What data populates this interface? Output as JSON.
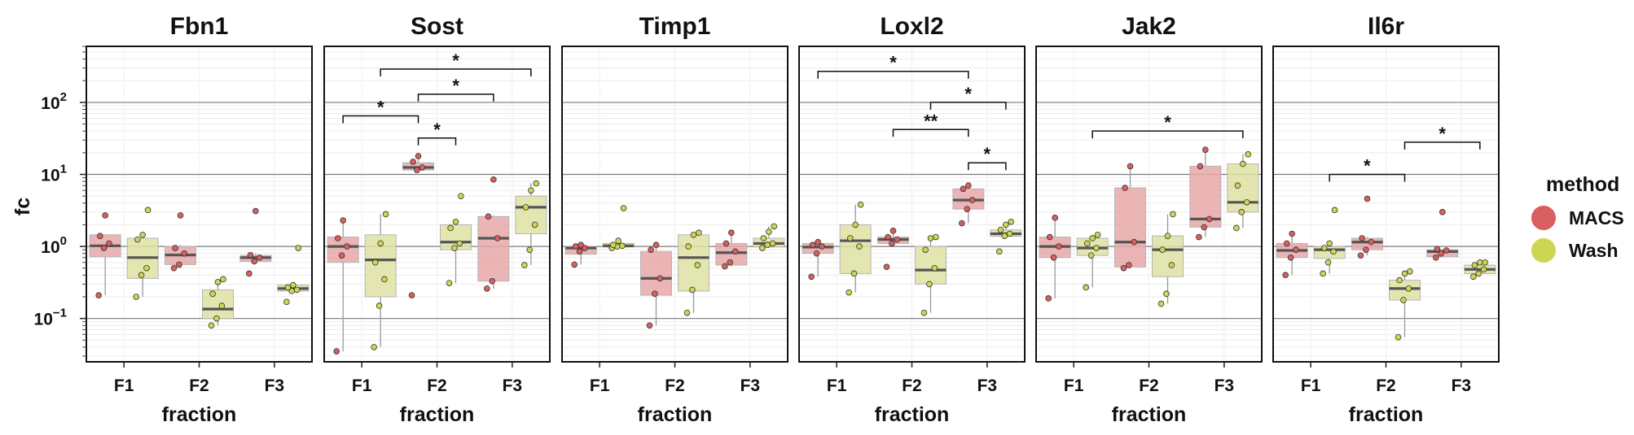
{
  "chart_data": {
    "type": "box",
    "y_scale": "log10",
    "ylim": [
      0.025,
      600
    ],
    "ylabel": "fc",
    "xlabel": "fraction",
    "categories": [
      "F1",
      "F2",
      "F3"
    ],
    "y_ticks": [
      {
        "value": 0.1,
        "base": "10",
        "exp": "−1"
      },
      {
        "value": 1,
        "base": "10",
        "exp": "0"
      },
      {
        "value": 10,
        "base": "10",
        "exp": "1"
      },
      {
        "value": 100,
        "base": "10",
        "exp": "2"
      }
    ],
    "legend": {
      "title": "method",
      "position": "right",
      "items": [
        {
          "key": "MACS",
          "label": "MACS",
          "color": "#d95f5f",
          "fill": "#e8a8a8"
        },
        {
          "key": "Wash",
          "label": "Wash",
          "color": "#cdd653",
          "fill": "#dfe2a3"
        }
      ]
    },
    "panels": [
      {
        "title": "Fbn1",
        "boxes": [
          {
            "fraction": "F1",
            "method": "MACS",
            "q1": 0.72,
            "median": 1.02,
            "q3": 1.45,
            "lo": 0.21,
            "hi": 1.48,
            "points": [
              0.21,
              0.95,
              1.1,
              1.4,
              2.7
            ]
          },
          {
            "fraction": "F1",
            "method": "Wash",
            "q1": 0.36,
            "median": 0.7,
            "q3": 1.3,
            "lo": 0.2,
            "hi": 1.5,
            "points": [
              0.2,
              0.4,
              0.5,
              1.25,
              1.45,
              3.2
            ]
          },
          {
            "fraction": "F2",
            "method": "MACS",
            "q1": 0.56,
            "median": 0.76,
            "q3": 1.0,
            "lo": 0.5,
            "hi": 1.05,
            "points": [
              0.5,
              0.56,
              0.8,
              0.95,
              2.7
            ]
          },
          {
            "fraction": "F2",
            "method": "Wash",
            "q1": 0.1,
            "median": 0.135,
            "q3": 0.25,
            "lo": 0.08,
            "hi": 0.35,
            "points": [
              0.08,
              0.1,
              0.15,
              0.22,
              0.32,
              0.35
            ]
          },
          {
            "fraction": "F3",
            "method": "MACS",
            "q1": 0.62,
            "median": 0.7,
            "q3": 0.75,
            "lo": 0.6,
            "hi": 0.8,
            "points": [
              0.42,
              0.62,
              0.7,
              0.76,
              3.1
            ]
          },
          {
            "fraction": "F3",
            "method": "Wash",
            "q1": 0.24,
            "median": 0.26,
            "q3": 0.29,
            "lo": 0.24,
            "hi": 0.29,
            "points": [
              0.17,
              0.24,
              0.25,
              0.27,
              0.29,
              0.95
            ]
          }
        ],
        "sig": []
      },
      {
        "title": "Sost",
        "boxes": [
          {
            "fraction": "F1",
            "method": "MACS",
            "q1": 0.6,
            "median": 1.0,
            "q3": 1.35,
            "lo": 0.035,
            "hi": 2.3,
            "points": [
              0.035,
              0.75,
              1.0,
              1.3,
              2.3
            ]
          },
          {
            "fraction": "F1",
            "method": "Wash",
            "q1": 0.2,
            "median": 0.65,
            "q3": 1.45,
            "lo": 0.04,
            "hi": 2.8,
            "points": [
              0.04,
              0.15,
              0.35,
              0.6,
              1.1,
              2.8
            ]
          },
          {
            "fraction": "F2",
            "method": "MACS",
            "q1": 11.5,
            "median": 12.5,
            "q3": 14.5,
            "lo": 11.0,
            "hi": 18.0,
            "points": [
              0.21,
              11.5,
              12.5,
              15,
              18
            ]
          },
          {
            "fraction": "F2",
            "method": "Wash",
            "q1": 0.9,
            "median": 1.15,
            "q3": 2.0,
            "lo": 0.31,
            "hi": 2.2,
            "points": [
              0.31,
              0.95,
              1.1,
              1.8,
              2.2,
              5.0
            ]
          },
          {
            "fraction": "F3",
            "method": "MACS",
            "q1": 0.33,
            "median": 1.3,
            "q3": 2.6,
            "lo": 0.26,
            "hi": 2.7,
            "points": [
              0.26,
              0.33,
              1.3,
              2.6,
              8.5
            ]
          },
          {
            "fraction": "F3",
            "method": "Wash",
            "q1": 1.5,
            "median": 3.5,
            "q3": 5.0,
            "lo": 0.55,
            "hi": 7.5,
            "points": [
              0.55,
              0.9,
              2.0,
              3.5,
              6.0,
              7.5
            ]
          }
        ],
        "sig": [
          {
            "from": [
              1,
              0
            ],
            "to": [
              2,
              0
            ],
            "y": 65,
            "label": "*"
          },
          {
            "from": [
              2,
              0
            ],
            "to": [
              2,
              1
            ],
            "y": 32,
            "label": "*"
          },
          {
            "from": [
              2,
              0
            ],
            "to": [
              3,
              0
            ],
            "y": 130,
            "label": "*"
          },
          {
            "from": [
              1,
              1
            ],
            "to": [
              3,
              1
            ],
            "y": 290,
            "label": "*"
          }
        ]
      },
      {
        "title": "Timp1",
        "boxes": [
          {
            "fraction": "F1",
            "method": "MACS",
            "q1": 0.78,
            "median": 0.95,
            "q3": 1.0,
            "lo": 0.56,
            "hi": 1.05,
            "points": [
              0.56,
              0.85,
              0.95,
              1.0,
              1.05
            ]
          },
          {
            "fraction": "F1",
            "method": "Wash",
            "q1": 0.98,
            "median": 1.02,
            "q3": 1.1,
            "lo": 0.95,
            "hi": 1.2,
            "points": [
              0.95,
              1.0,
              1.02,
              1.05,
              1.2,
              3.4
            ]
          },
          {
            "fraction": "F2",
            "method": "MACS",
            "q1": 0.21,
            "median": 0.36,
            "q3": 0.85,
            "lo": 0.08,
            "hi": 1.05,
            "points": [
              0.08,
              0.22,
              0.36,
              0.9,
              1.05
            ]
          },
          {
            "fraction": "F2",
            "method": "Wash",
            "q1": 0.24,
            "median": 0.7,
            "q3": 1.45,
            "lo": 0.12,
            "hi": 1.55,
            "points": [
              0.12,
              0.25,
              0.55,
              1.0,
              1.45,
              1.55
            ]
          },
          {
            "fraction": "F3",
            "method": "MACS",
            "q1": 0.55,
            "median": 0.82,
            "q3": 1.1,
            "lo": 0.53,
            "hi": 1.55,
            "points": [
              0.53,
              0.6,
              0.85,
              1.1,
              1.55
            ]
          },
          {
            "fraction": "F3",
            "method": "Wash",
            "q1": 0.98,
            "median": 1.1,
            "q3": 1.3,
            "lo": 0.95,
            "hi": 1.9,
            "points": [
              0.95,
              1.05,
              1.1,
              1.3,
              1.6,
              1.9
            ]
          }
        ],
        "sig": []
      },
      {
        "title": "Loxl2",
        "boxes": [
          {
            "fraction": "F1",
            "method": "MACS",
            "q1": 0.8,
            "median": 0.98,
            "q3": 1.1,
            "lo": 0.38,
            "hi": 1.15,
            "points": [
              0.38,
              0.8,
              1.0,
              1.05,
              1.15
            ]
          },
          {
            "fraction": "F1",
            "method": "Wash",
            "q1": 0.42,
            "median": 1.2,
            "q3": 2.0,
            "lo": 0.23,
            "hi": 3.8,
            "points": [
              0.23,
              0.42,
              1.0,
              1.3,
              2.0,
              3.8
            ]
          },
          {
            "fraction": "F2",
            "method": "MACS",
            "q1": 1.1,
            "median": 1.25,
            "q3": 1.35,
            "lo": 1.05,
            "hi": 1.65,
            "points": [
              0.52,
              1.1,
              1.25,
              1.35,
              1.65
            ]
          },
          {
            "fraction": "F2",
            "method": "Wash",
            "q1": 0.3,
            "median": 0.47,
            "q3": 1.0,
            "lo": 0.12,
            "hi": 1.35,
            "points": [
              0.12,
              0.3,
              0.5,
              0.9,
              1.3,
              1.35
            ]
          },
          {
            "fraction": "F3",
            "method": "MACS",
            "q1": 3.3,
            "median": 4.4,
            "q3": 6.3,
            "lo": 2.1,
            "hi": 7.0,
            "points": [
              2.1,
              3.3,
              4.4,
              6.3,
              7.0
            ]
          },
          {
            "fraction": "F3",
            "method": "Wash",
            "q1": 1.38,
            "median": 1.5,
            "q3": 1.7,
            "lo": 1.3,
            "hi": 2.2,
            "points": [
              0.85,
              1.4,
              1.5,
              1.7,
              2.0,
              2.2
            ]
          }
        ],
        "sig": [
          {
            "from": [
              1,
              0
            ],
            "to": [
              3,
              0
            ],
            "y": 270,
            "label": "*"
          },
          {
            "from": [
              2,
              1
            ],
            "to": [
              3,
              1
            ],
            "y": 100,
            "label": "*"
          },
          {
            "from": [
              2,
              0
            ],
            "to": [
              3,
              0
            ],
            "y": 42,
            "label": "**"
          },
          {
            "from": [
              3,
              0
            ],
            "to": [
              3,
              1
            ],
            "y": 14.5,
            "label": "*"
          }
        ]
      },
      {
        "title": "Jak2",
        "boxes": [
          {
            "fraction": "F1",
            "method": "MACS",
            "q1": 0.7,
            "median": 1.0,
            "q3": 1.35,
            "lo": 0.19,
            "hi": 2.5,
            "points": [
              0.19,
              0.7,
              1.0,
              1.35,
              2.5
            ]
          },
          {
            "fraction": "F1",
            "method": "Wash",
            "q1": 0.75,
            "median": 0.95,
            "q3": 1.3,
            "lo": 0.27,
            "hi": 1.45,
            "points": [
              0.27,
              0.75,
              0.95,
              1.1,
              1.3,
              1.45
            ]
          },
          {
            "fraction": "F2",
            "method": "MACS",
            "q1": 0.52,
            "median": 1.15,
            "q3": 6.5,
            "lo": 0.5,
            "hi": 13.0,
            "points": [
              0.5,
              0.55,
              1.15,
              6.5,
              13.0
            ]
          },
          {
            "fraction": "F2",
            "method": "Wash",
            "q1": 0.38,
            "median": 0.9,
            "q3": 1.4,
            "lo": 0.16,
            "hi": 2.8,
            "points": [
              0.16,
              0.22,
              0.55,
              0.9,
              1.4,
              2.8
            ]
          },
          {
            "fraction": "F3",
            "method": "MACS",
            "q1": 1.85,
            "median": 2.4,
            "q3": 13.0,
            "lo": 1.35,
            "hi": 22.0,
            "points": [
              1.35,
              1.85,
              2.4,
              13.0,
              22.0
            ]
          },
          {
            "fraction": "F3",
            "method": "Wash",
            "q1": 3.0,
            "median": 4.1,
            "q3": 14.0,
            "lo": 1.8,
            "hi": 19.0,
            "points": [
              1.8,
              3.0,
              4.1,
              7.0,
              14.0,
              19.0
            ]
          }
        ],
        "sig": [
          {
            "from": [
              1,
              1
            ],
            "to": [
              3,
              1
            ],
            "y": 40,
            "label": "*"
          }
        ]
      },
      {
        "title": "Il6r",
        "boxes": [
          {
            "fraction": "F1",
            "method": "MACS",
            "q1": 0.7,
            "median": 0.88,
            "q3": 1.1,
            "lo": 0.4,
            "hi": 1.5,
            "points": [
              0.4,
              0.7,
              0.9,
              1.1,
              1.5
            ]
          },
          {
            "fraction": "F1",
            "method": "Wash",
            "q1": 0.68,
            "median": 0.9,
            "q3": 1.0,
            "lo": 0.42,
            "hi": 1.1,
            "points": [
              0.42,
              0.6,
              0.85,
              0.95,
              1.1,
              3.2
            ]
          },
          {
            "fraction": "F2",
            "method": "MACS",
            "q1": 0.9,
            "median": 1.15,
            "q3": 1.3,
            "lo": 0.75,
            "hi": 1.35,
            "points": [
              0.75,
              0.9,
              1.15,
              1.3,
              4.6
            ]
          },
          {
            "fraction": "F2",
            "method": "Wash",
            "q1": 0.18,
            "median": 0.26,
            "q3": 0.34,
            "lo": 0.055,
            "hi": 0.45,
            "points": [
              0.055,
              0.18,
              0.26,
              0.34,
              0.42,
              0.45
            ]
          },
          {
            "fraction": "F3",
            "method": "MACS",
            "q1": 0.72,
            "median": 0.85,
            "q3": 0.9,
            "lo": 0.7,
            "hi": 0.92,
            "points": [
              0.7,
              0.8,
              0.88,
              0.92,
              3.0
            ]
          },
          {
            "fraction": "F3",
            "method": "Wash",
            "q1": 0.42,
            "median": 0.48,
            "q3": 0.55,
            "lo": 0.38,
            "hi": 0.6,
            "points": [
              0.38,
              0.42,
              0.48,
              0.55,
              0.6,
              0.6
            ]
          }
        ],
        "sig": [
          {
            "from": [
              1,
              1
            ],
            "to": [
              2,
              1
            ],
            "y": 10,
            "label": "*"
          },
          {
            "from": [
              2,
              1
            ],
            "to": [
              3,
              1
            ],
            "y": 28,
            "label": "*"
          }
        ]
      }
    ]
  }
}
